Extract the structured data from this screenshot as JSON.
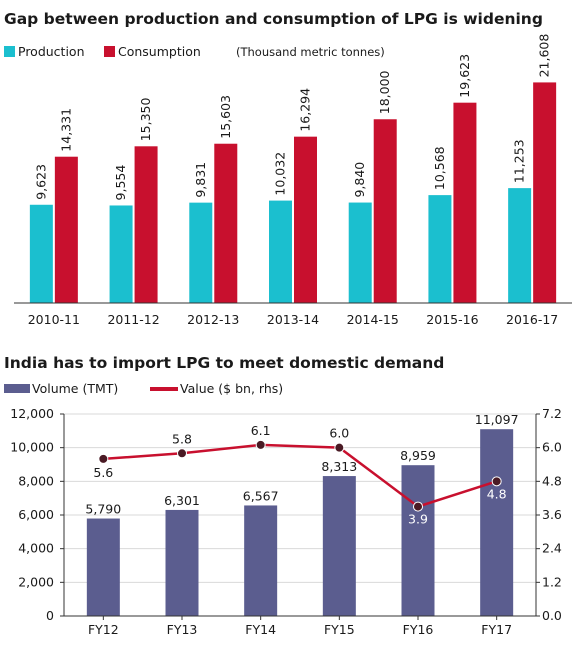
{
  "chart_data": [
    {
      "type": "bar",
      "title": "Gap between production and consumption of LPG is widening",
      "unit_note": "(Thousand metric tonnes)",
      "categories": [
        "2010-11",
        "2011-12",
        "2012-13",
        "2013-14",
        "2014-15",
        "2015-16",
        "2016-17"
      ],
      "series": [
        {
          "name": "Production",
          "color": "#1bbfcf",
          "values": [
            9623,
            9554,
            9831,
            10032,
            9840,
            10568,
            11253
          ],
          "labels": [
            "9,623",
            "9,554",
            "9,831",
            "10,032",
            "9,840",
            "10,568",
            "11,253"
          ]
        },
        {
          "name": "Consumption",
          "color": "#c8102e",
          "values": [
            14331,
            15350,
            15603,
            16294,
            18000,
            19623,
            21608
          ],
          "labels": [
            "14,331",
            "15,350",
            "15,603",
            "16,294",
            "18,000",
            "19,623",
            "21,608"
          ]
        }
      ],
      "ylim": [
        0,
        24000
      ],
      "grid": false,
      "legend": "top-left"
    },
    {
      "type": "bar+line",
      "title": "India has to import LPG to meet domestic demand",
      "categories": [
        "FY12",
        "FY13",
        "FY14",
        "FY15",
        "FY16",
        "FY17"
      ],
      "bar_series": {
        "name": "Volume (TMT)",
        "color": "#5b5d8f",
        "values": [
          5790,
          6301,
          6567,
          8313,
          8959,
          11097
        ],
        "labels": [
          "5,790",
          "6,301",
          "6,567",
          "8,313",
          "8,959",
          "11,097"
        ]
      },
      "line_series": {
        "name": "Value ($ bn, rhs)",
        "color": "#c8102e",
        "values": [
          5.6,
          5.8,
          6.1,
          6.0,
          3.9,
          4.8
        ],
        "labels": [
          "5.6",
          "5.8",
          "6.1",
          "6.0",
          "3.9",
          "4.8"
        ]
      },
      "y_left": {
        "ylim": [
          0,
          12000
        ],
        "ticks": [
          "0",
          "2,000",
          "4,000",
          "6,000",
          "8,000",
          "10,000",
          "12,000"
        ],
        "tick_values": [
          0,
          2000,
          4000,
          6000,
          8000,
          10000,
          12000
        ]
      },
      "y_right": {
        "ylim": [
          0,
          7.2
        ],
        "ticks": [
          "0.0",
          "1.2",
          "2.4",
          "3.6",
          "4.8",
          "6.0",
          "7.2"
        ],
        "tick_values": [
          0,
          1.2,
          2.4,
          3.6,
          4.8,
          6.0,
          7.2
        ]
      },
      "grid": true,
      "legend": "top-left"
    }
  ]
}
